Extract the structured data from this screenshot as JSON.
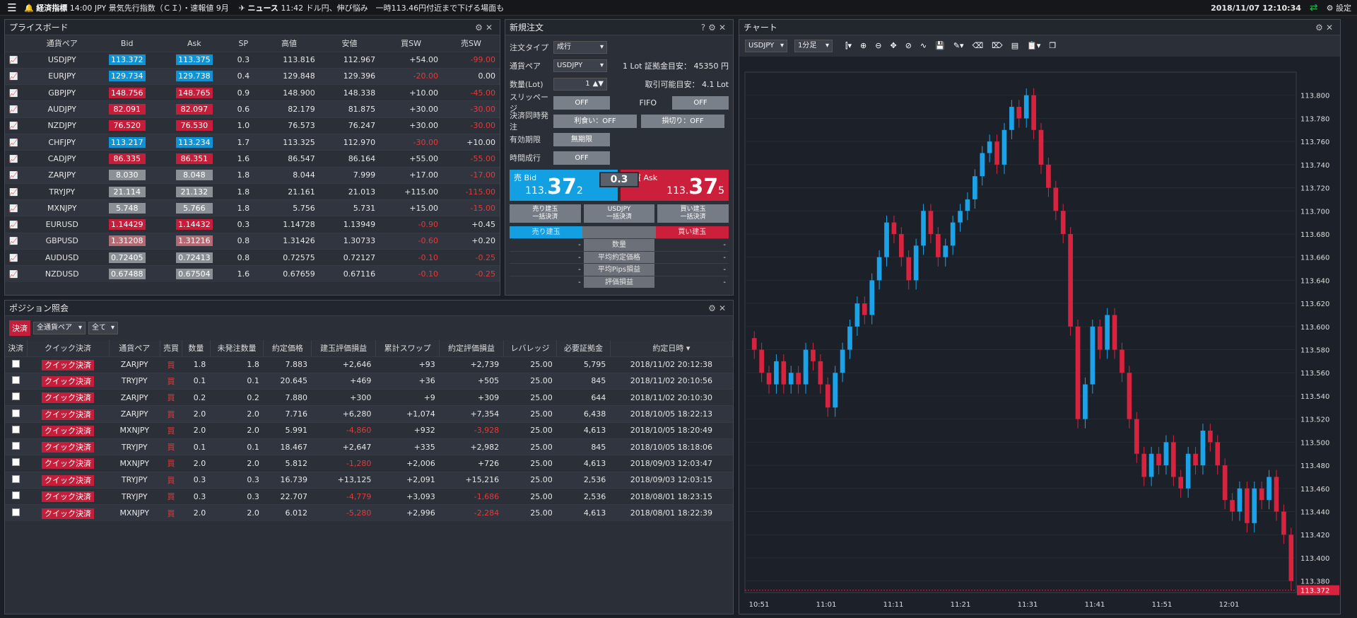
{
  "topbar": {
    "economic": "経済指標",
    "eco_time": "14:00",
    "eco_text": "JPY 景気先行指数（ＣＩ）・速報値 9月",
    "news": "ニュース",
    "news_time": "11:42",
    "news_text": "ドル円、伸び悩み　一時113.46円付近まで下げる場面も",
    "datetime": "2018/11/07 12:10:34",
    "settings": "設定"
  },
  "priceboard": {
    "title": "プライスボード",
    "headers": [
      "通貨ペア",
      "Bid",
      "Ask",
      "SP",
      "高値",
      "安値",
      "買SW",
      "売SW"
    ],
    "rows": [
      {
        "pair": "USDJPY",
        "bid": "113.372",
        "ask": "113.375",
        "bid_c": "up",
        "ask_c": "up",
        "sp": "0.3",
        "high": "113.816",
        "low": "112.967",
        "bsw": "+54.00",
        "ssw": "-99.00"
      },
      {
        "pair": "EURJPY",
        "bid": "129.734",
        "ask": "129.738",
        "bid_c": "up",
        "ask_c": "up",
        "sp": "0.4",
        "high": "129.848",
        "low": "129.396",
        "bsw": "-20.00",
        "ssw": "0.00"
      },
      {
        "pair": "GBPJPY",
        "bid": "148.756",
        "ask": "148.765",
        "bid_c": "dn",
        "ask_c": "dn",
        "sp": "0.9",
        "high": "148.900",
        "low": "148.338",
        "bsw": "+10.00",
        "ssw": "-45.00"
      },
      {
        "pair": "AUDJPY",
        "bid": "82.091",
        "ask": "82.097",
        "bid_c": "dn",
        "ask_c": "dn",
        "sp": "0.6",
        "high": "82.179",
        "low": "81.875",
        "bsw": "+30.00",
        "ssw": "-30.00"
      },
      {
        "pair": "NZDJPY",
        "bid": "76.520",
        "ask": "76.530",
        "bid_c": "dn",
        "ask_c": "dn",
        "sp": "1.0",
        "high": "76.573",
        "low": "76.247",
        "bsw": "+30.00",
        "ssw": "-30.00"
      },
      {
        "pair": "CHFJPY",
        "bid": "113.217",
        "ask": "113.234",
        "bid_c": "up",
        "ask_c": "up",
        "sp": "1.7",
        "high": "113.325",
        "low": "112.970",
        "bsw": "-30.00",
        "ssw": "+10.00"
      },
      {
        "pair": "CADJPY",
        "bid": "86.335",
        "ask": "86.351",
        "bid_c": "dn",
        "ask_c": "dn",
        "sp": "1.6",
        "high": "86.547",
        "low": "86.164",
        "bsw": "+55.00",
        "ssw": "-55.00"
      },
      {
        "pair": "ZARJPY",
        "bid": "8.030",
        "ask": "8.048",
        "bid_c": "nc",
        "ask_c": "nc",
        "sp": "1.8",
        "high": "8.044",
        "low": "7.999",
        "bsw": "+17.00",
        "ssw": "-17.00"
      },
      {
        "pair": "TRYJPY",
        "bid": "21.114",
        "ask": "21.132",
        "bid_c": "nc",
        "ask_c": "nc",
        "sp": "1.8",
        "high": "21.161",
        "low": "21.013",
        "bsw": "+115.00",
        "ssw": "-115.00"
      },
      {
        "pair": "MXNJPY",
        "bid": "5.748",
        "ask": "5.766",
        "bid_c": "nc",
        "ask_c": "nc",
        "sp": "1.8",
        "high": "5.756",
        "low": "5.731",
        "bsw": "+15.00",
        "ssw": "-15.00"
      },
      {
        "pair": "EURUSD",
        "bid": "1.14429",
        "ask": "1.14432",
        "bid_c": "dn",
        "ask_c": "dn",
        "sp": "0.3",
        "high": "1.14728",
        "low": "1.13949",
        "bsw": "-0.90",
        "ssw": "+0.45"
      },
      {
        "pair": "GBPUSD",
        "bid": "1.31208",
        "ask": "1.31216",
        "bid_c": "pink",
        "ask_c": "pink",
        "sp": "0.8",
        "high": "1.31426",
        "low": "1.30733",
        "bsw": "-0.60",
        "ssw": "+0.20"
      },
      {
        "pair": "AUDUSD",
        "bid": "0.72405",
        "ask": "0.72413",
        "bid_c": "nc",
        "ask_c": "nc",
        "sp": "0.8",
        "high": "0.72575",
        "low": "0.72127",
        "bsw": "-0.10",
        "ssw": "-0.25"
      },
      {
        "pair": "NZDUSD",
        "bid": "0.67488",
        "ask": "0.67504",
        "bid_c": "nc",
        "ask_c": "nc",
        "sp": "1.6",
        "high": "0.67659",
        "low": "0.67116",
        "bsw": "-0.10",
        "ssw": "-0.25"
      }
    ]
  },
  "order": {
    "title": "新規注文",
    "type_label": "注文タイプ",
    "type_value": "成行",
    "pair_label": "通貨ペア",
    "pair_value": "USDJPY",
    "margin_label": "1 Lot 証拠金目安：",
    "margin_value": "45350 円",
    "qty_label": "数量(Lot)",
    "qty_value": "1",
    "avail_label": "取引可能目安：",
    "avail_value": "4.1 Lot",
    "slip_label": "スリッページ",
    "slip_value": "OFF",
    "fifo_label": "FIFO",
    "fifo_value": "OFF",
    "settle_label": "決済同時発注",
    "tp_value": "利食い：OFF",
    "sl_value": "損切り：OFF",
    "expiry_label": "有効期限",
    "expiry_value": "無期限",
    "timed_label": "時間成行",
    "timed_value": "OFF",
    "sell_label": "売 Bid",
    "sell_int": "113.",
    "sell_big": "37",
    "sell_small": "2",
    "buy_label": "買 Ask",
    "buy_int": "113.",
    "buy_big": "37",
    "buy_small": "5",
    "spread": "0.3",
    "btn_sell_close": "売り建玉",
    "btn_sell_close_sub": "一括決済",
    "btn_all_close": "USDJPY",
    "btn_all_close_sub": "一括決済",
    "btn_buy_close": "買い建玉",
    "btn_buy_close_sub": "一括決済",
    "sell_pos": "売り建玉",
    "buy_pos": "買い建玉",
    "stats": [
      "数量",
      "平均約定価格",
      "平均Pips損益",
      "評価損益"
    ],
    "dash": "-"
  },
  "positions": {
    "title": "ポジション照会",
    "settle_btn": "決済",
    "filter_pair": "全通貨ペア",
    "filter_all": "全て",
    "headers": [
      "決済",
      "クイック決済",
      "通貨ペア",
      "売買",
      "数量",
      "未発注数量",
      "約定価格",
      "建玉評価損益",
      "累計スワップ",
      "約定評価損益",
      "レバレッジ",
      "必要証拠金",
      "約定日時"
    ],
    "quick": "クイック決済",
    "rows": [
      {
        "pair": "ZARJPY",
        "side": "買",
        "qty": "1.8",
        "unord": "1.8",
        "price": "7.883",
        "eval": "+2,646",
        "swap": "+93",
        "total": "+2,739",
        "lev": "25.00",
        "margin": "5,795",
        "date": "2018/11/02 20:12:38",
        "eval_neg": false,
        "total_neg": false
      },
      {
        "pair": "TRYJPY",
        "side": "買",
        "qty": "0.1",
        "unord": "0.1",
        "price": "20.645",
        "eval": "+469",
        "swap": "+36",
        "total": "+505",
        "lev": "25.00",
        "margin": "845",
        "date": "2018/11/02 20:10:56",
        "eval_neg": false,
        "total_neg": false
      },
      {
        "pair": "ZARJPY",
        "side": "買",
        "qty": "0.2",
        "unord": "0.2",
        "price": "7.880",
        "eval": "+300",
        "swap": "+9",
        "total": "+309",
        "lev": "25.00",
        "margin": "644",
        "date": "2018/11/02 20:10:30",
        "eval_neg": false,
        "total_neg": false
      },
      {
        "pair": "ZARJPY",
        "side": "買",
        "qty": "2.0",
        "unord": "2.0",
        "price": "7.716",
        "eval": "+6,280",
        "swap": "+1,074",
        "total": "+7,354",
        "lev": "25.00",
        "margin": "6,438",
        "date": "2018/10/05 18:22:13",
        "eval_neg": false,
        "total_neg": false
      },
      {
        "pair": "MXNJPY",
        "side": "買",
        "qty": "2.0",
        "unord": "2.0",
        "price": "5.991",
        "eval": "-4,860",
        "swap": "+932",
        "total": "-3,928",
        "lev": "25.00",
        "margin": "4,613",
        "date": "2018/10/05 18:20:49",
        "eval_neg": true,
        "total_neg": true
      },
      {
        "pair": "TRYJPY",
        "side": "買",
        "qty": "0.1",
        "unord": "0.1",
        "price": "18.467",
        "eval": "+2,647",
        "swap": "+335",
        "total": "+2,982",
        "lev": "25.00",
        "margin": "845",
        "date": "2018/10/05 18:18:06",
        "eval_neg": false,
        "total_neg": false
      },
      {
        "pair": "MXNJPY",
        "side": "買",
        "qty": "2.0",
        "unord": "2.0",
        "price": "5.812",
        "eval": "-1,280",
        "swap": "+2,006",
        "total": "+726",
        "lev": "25.00",
        "margin": "4,613",
        "date": "2018/09/03 12:03:47",
        "eval_neg": true,
        "total_neg": false
      },
      {
        "pair": "TRYJPY",
        "side": "買",
        "qty": "0.3",
        "unord": "0.3",
        "price": "16.739",
        "eval": "+13,125",
        "swap": "+2,091",
        "total": "+15,216",
        "lev": "25.00",
        "margin": "2,536",
        "date": "2018/09/03 12:03:15",
        "eval_neg": false,
        "total_neg": false
      },
      {
        "pair": "TRYJPY",
        "side": "買",
        "qty": "0.3",
        "unord": "0.3",
        "price": "22.707",
        "eval": "-4,779",
        "swap": "+3,093",
        "total": "-1,686",
        "lev": "25.00",
        "margin": "2,536",
        "date": "2018/08/01 18:23:15",
        "eval_neg": true,
        "total_neg": true
      },
      {
        "pair": "MXNJPY",
        "side": "買",
        "qty": "2.0",
        "unord": "2.0",
        "price": "6.012",
        "eval": "-5,280",
        "swap": "+2,996",
        "total": "-2,284",
        "lev": "25.00",
        "margin": "4,613",
        "date": "2018/08/01 18:22:39",
        "eval_neg": true,
        "total_neg": true
      }
    ]
  },
  "chart": {
    "title": "チャート",
    "symbol": "USDJPY",
    "timeframe": "1分足",
    "y_ticks": [
      "113.800",
      "113.780",
      "113.760",
      "113.740",
      "113.720",
      "113.700",
      "113.680",
      "113.660",
      "113.640",
      "113.620",
      "113.600",
      "113.580",
      "113.560",
      "113.540",
      "113.520",
      "113.500",
      "113.480",
      "113.460",
      "113.440",
      "113.420",
      "113.400",
      "113.380"
    ],
    "x_ticks": [
      "10:51",
      "11:01",
      "11:11",
      "11:21",
      "11:31",
      "11:41",
      "11:51",
      "12:01"
    ],
    "last_price": "113.372",
    "up_color": "#1aa3e8",
    "down_color": "#d8233f"
  },
  "chart_data": {
    "type": "candlestick",
    "ylim": [
      113.37,
      113.82
    ],
    "closes": [
      113.58,
      113.56,
      113.55,
      113.57,
      113.55,
      113.56,
      113.55,
      113.58,
      113.57,
      113.55,
      113.53,
      113.56,
      113.58,
      113.6,
      113.62,
      113.61,
      113.64,
      113.66,
      113.69,
      113.68,
      113.66,
      113.64,
      113.67,
      113.7,
      113.68,
      113.66,
      113.67,
      113.69,
      113.7,
      113.71,
      113.73,
      113.75,
      113.76,
      113.74,
      113.77,
      113.79,
      113.78,
      113.8,
      113.77,
      113.74,
      113.72,
      113.7,
      113.68,
      113.6,
      113.52,
      113.55,
      113.6,
      113.58,
      113.61,
      113.58,
      113.56,
      113.52,
      113.49,
      113.47,
      113.49,
      113.48,
      113.5,
      113.47,
      113.46,
      113.49,
      113.48,
      113.51,
      113.5,
      113.48,
      113.45,
      113.44,
      113.46,
      113.43,
      113.46,
      113.45,
      113.47,
      113.44,
      113.42,
      113.38
    ]
  }
}
